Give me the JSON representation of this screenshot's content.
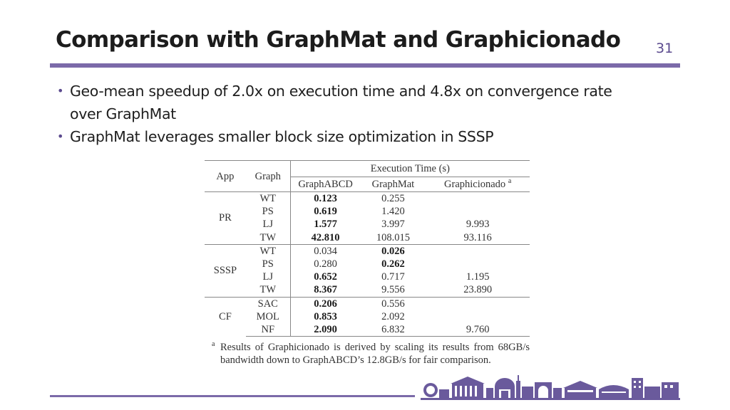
{
  "slide": {
    "title": "Comparison with GraphMat and Graphicionado",
    "number": "31"
  },
  "bullets": [
    "Geo-mean speedup of 2.0x on execution time and 4.8x on convergence rate over GraphMat",
    "GraphMat leverages smaller block size optimization in SSSP"
  ],
  "table": {
    "headers": {
      "app": "App",
      "graph": "Graph",
      "execution_time": "Execution Time (s)",
      "graphabcd": "GraphABCD",
      "graphmat": "GraphMat",
      "graphicionado": "Graphicionado",
      "footnote_mark": "a"
    },
    "groups": [
      {
        "app": "PR",
        "rows": [
          {
            "graph": "WT",
            "graphabcd": "0.123",
            "graphmat": "0.255",
            "graphicionado": "",
            "bold": "graphabcd"
          },
          {
            "graph": "PS",
            "graphabcd": "0.619",
            "graphmat": "1.420",
            "graphicionado": "",
            "bold": "graphabcd"
          },
          {
            "graph": "LJ",
            "graphabcd": "1.577",
            "graphmat": "3.997",
            "graphicionado": "9.993",
            "bold": "graphabcd"
          },
          {
            "graph": "TW",
            "graphabcd": "42.810",
            "graphmat": "108.015",
            "graphicionado": "93.116",
            "bold": "graphabcd"
          }
        ]
      },
      {
        "app": "SSSP",
        "rows": [
          {
            "graph": "WT",
            "graphabcd": "0.034",
            "graphmat": "0.026",
            "graphicionado": "",
            "bold": "graphmat"
          },
          {
            "graph": "PS",
            "graphabcd": "0.280",
            "graphmat": "0.262",
            "graphicionado": "",
            "bold": "graphmat"
          },
          {
            "graph": "LJ",
            "graphabcd": "0.652",
            "graphmat": "0.717",
            "graphicionado": "1.195",
            "bold": "graphabcd"
          },
          {
            "graph": "TW",
            "graphabcd": "8.367",
            "graphmat": "9.556",
            "graphicionado": "23.890",
            "bold": "graphabcd"
          }
        ]
      },
      {
        "app": "CF",
        "rows": [
          {
            "graph": "SAC",
            "graphabcd": "0.206",
            "graphmat": "0.556",
            "graphicionado": "",
            "bold": "graphabcd"
          },
          {
            "graph": "MOL",
            "graphabcd": "0.853",
            "graphmat": "2.092",
            "graphicionado": "",
            "bold": "graphabcd"
          },
          {
            "graph": "NF",
            "graphabcd": "2.090",
            "graphmat": "6.832",
            "graphicionado": "9.760",
            "bold": "graphabcd"
          }
        ]
      }
    ],
    "footnote": {
      "mark": "a",
      "text": "Results of Graphicionado is derived by scaling its results from 68GB/s bandwidth down to GraphABCD’s 12.8GB/s for fair comparison."
    }
  },
  "colors": {
    "accent": "#7b6aa9",
    "slide_number": "#5b4a8e",
    "skyline": "#6a5a9c"
  },
  "decoration": {
    "skyline_icon": "campus-skyline-icon"
  }
}
